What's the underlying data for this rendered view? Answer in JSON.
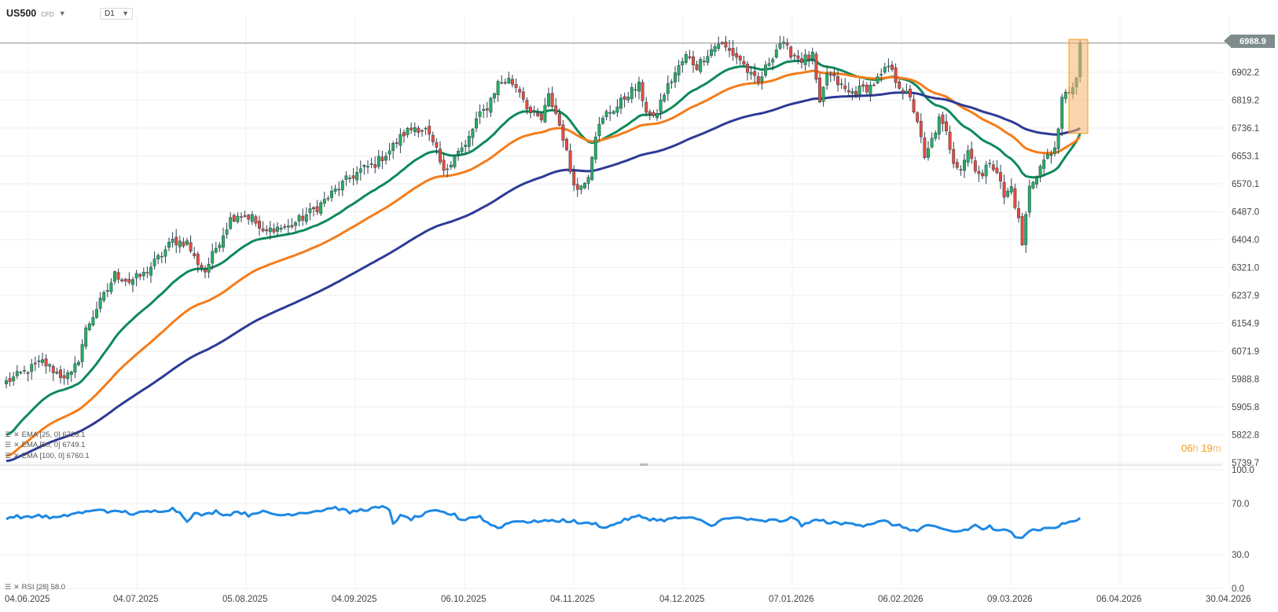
{
  "header": {
    "symbol": "US500",
    "symbol_type": "CFD",
    "timeframe": "D1"
  },
  "last_price_label": "6988.9",
  "countdown": {
    "hours": "06",
    "h_unit": "h",
    "minutes": "19",
    "m_unit": "m"
  },
  "indicators": [
    {
      "label": "EMA [25, 0] 6728.1",
      "color": "#0e8a5a"
    },
    {
      "label": "EMA [50, 0] 6749.1",
      "color": "#f47c1a"
    },
    {
      "label": "EMA [100, 0] 6760.1",
      "color": "#2e3a96"
    }
  ],
  "rsi_label": "RSI [28] 58.0",
  "colors": {
    "up": "#27ae60",
    "down": "#e74c3c",
    "rsi": "#1e88e5",
    "highlight": "#f7b36b"
  },
  "chart_data": [
    {
      "type": "candlestick",
      "x_labels": [
        "04.06.2025",
        "04.07.2025",
        "05.08.2025",
        "04.09.2025",
        "06.10.2025",
        "04.11.2025",
        "04.12.2025",
        "07.01.2026",
        "06.02.2026",
        "09.03.2026",
        "06.04.2026",
        "30.04.2026"
      ],
      "y_ticks": [
        5739.7,
        5822.8,
        5905.8,
        5988.8,
        6071.9,
        6154.9,
        6237.9,
        6321.0,
        6404.0,
        6487.0,
        6570.1,
        6653.1,
        6736.1,
        6819.2,
        6902.2
      ],
      "ylim": [
        5739.7,
        7060
      ],
      "current_price": 6988.9,
      "close_anchors": [
        [
          0,
          5980
        ],
        [
          5,
          6010
        ],
        [
          10,
          6040
        ],
        [
          15,
          6000
        ],
        [
          18,
          6000
        ],
        [
          20,
          6050
        ],
        [
          22,
          6135
        ],
        [
          25,
          6200
        ],
        [
          28,
          6255
        ],
        [
          30,
          6300
        ],
        [
          34,
          6280
        ],
        [
          38,
          6300
        ],
        [
          43,
          6360
        ],
        [
          46,
          6400
        ],
        [
          50,
          6395
        ],
        [
          52,
          6350
        ],
        [
          55,
          6310
        ],
        [
          58,
          6380
        ],
        [
          62,
          6465
        ],
        [
          64,
          6480
        ],
        [
          68,
          6470
        ],
        [
          71,
          6420
        ],
        [
          74,
          6440
        ],
        [
          78,
          6440
        ],
        [
          82,
          6470
        ],
        [
          86,
          6500
        ],
        [
          90,
          6540
        ],
        [
          94,
          6580
        ],
        [
          98,
          6610
        ],
        [
          102,
          6630
        ],
        [
          106,
          6670
        ],
        [
          110,
          6720
        ],
        [
          113,
          6740
        ],
        [
          116,
          6730
        ],
        [
          119,
          6665
        ],
        [
          121,
          6600
        ],
        [
          124,
          6660
        ],
        [
          127,
          6680
        ],
        [
          130,
          6760
        ],
        [
          133,
          6800
        ],
        [
          136,
          6870
        ],
        [
          139,
          6880
        ],
        [
          142,
          6850
        ],
        [
          145,
          6780
        ],
        [
          148,
          6760
        ],
        [
          150,
          6830
        ],
        [
          152,
          6780
        ],
        [
          154,
          6710
        ],
        [
          156,
          6610
        ],
        [
          158,
          6550
        ],
        [
          161,
          6600
        ],
        [
          163,
          6720
        ],
        [
          166,
          6780
        ],
        [
          169,
          6800
        ],
        [
          172,
          6840
        ],
        [
          175,
          6860
        ],
        [
          177,
          6790
        ],
        [
          179,
          6760
        ],
        [
          182,
          6840
        ],
        [
          185,
          6900
        ],
        [
          188,
          6950
        ],
        [
          191,
          6920
        ],
        [
          194,
          6960
        ],
        [
          197,
          6990
        ],
        [
          200,
          6965
        ],
        [
          203,
          6940
        ],
        [
          206,
          6890
        ],
        [
          208,
          6870
        ],
        [
          211,
          6935
        ],
        [
          214,
          6990
        ],
        [
          217,
          6960
        ],
        [
          220,
          6940
        ],
        [
          223,
          6950
        ],
        [
          225,
          6800
        ],
        [
          227,
          6900
        ],
        [
          230,
          6870
        ],
        [
          233,
          6840
        ],
        [
          236,
          6850
        ],
        [
          239,
          6860
        ],
        [
          242,
          6890
        ],
        [
          244,
          6920
        ],
        [
          246,
          6880
        ],
        [
          248,
          6850
        ],
        [
          250,
          6820
        ],
        [
          252,
          6760
        ],
        [
          254,
          6640
        ],
        [
          256,
          6700
        ],
        [
          258,
          6760
        ],
        [
          260,
          6720
        ],
        [
          262,
          6640
        ],
        [
          264,
          6620
        ],
        [
          266,
          6670
        ],
        [
          268,
          6620
        ],
        [
          270,
          6590
        ],
        [
          272,
          6640
        ],
        [
          274,
          6610
        ],
        [
          276,
          6530
        ],
        [
          278,
          6560
        ],
        [
          280,
          6460
        ],
        [
          281,
          6390
        ],
        [
          283,
          6560
        ],
        [
          285,
          6600
        ],
        [
          287,
          6640
        ],
        [
          289,
          6660
        ],
        [
          291,
          6720
        ],
        [
          292,
          6820
        ],
        [
          294,
          6850
        ],
        [
          296,
          6880
        ],
        [
          297,
          6980
        ]
      ]
    },
    {
      "type": "line",
      "name": "RSI [28]",
      "y_ticks": [
        0.0,
        30.0,
        70.0,
        100.0
      ],
      "ylim": [
        0,
        100
      ],
      "anchors": [
        [
          0,
          59
        ],
        [
          3,
          60
        ],
        [
          6,
          59
        ],
        [
          9,
          61
        ],
        [
          12,
          59
        ],
        [
          15,
          59
        ],
        [
          18,
          62
        ],
        [
          21,
          63
        ],
        [
          24,
          64
        ],
        [
          26,
          66
        ],
        [
          29,
          63
        ],
        [
          32,
          64
        ],
        [
          35,
          62
        ],
        [
          38,
          63
        ],
        [
          41,
          64
        ],
        [
          44,
          65
        ],
        [
          46,
          66
        ],
        [
          48,
          63
        ],
        [
          50,
          57
        ],
        [
          52,
          62
        ],
        [
          55,
          61
        ],
        [
          58,
          64
        ],
        [
          61,
          61
        ],
        [
          64,
          64
        ],
        [
          67,
          61
        ],
        [
          70,
          64
        ],
        [
          73,
          62
        ],
        [
          76,
          61
        ],
        [
          79,
          62
        ],
        [
          82,
          63
        ],
        [
          85,
          64
        ],
        [
          88,
          65
        ],
        [
          90,
          67
        ],
        [
          92,
          66
        ],
        [
          95,
          63
        ],
        [
          98,
          65
        ],
        [
          101,
          66
        ],
        [
          104,
          67
        ],
        [
          106,
          65
        ],
        [
          107,
          55
        ],
        [
          109,
          60
        ],
        [
          112,
          58
        ],
        [
          115,
          61
        ],
        [
          118,
          64
        ],
        [
          121,
          63
        ],
        [
          124,
          61
        ],
        [
          126,
          57
        ],
        [
          128,
          59
        ],
        [
          131,
          60
        ],
        [
          133,
          55
        ],
        [
          136,
          51
        ],
        [
          139,
          55
        ],
        [
          142,
          57
        ],
        [
          145,
          55
        ],
        [
          148,
          57
        ],
        [
          151,
          56
        ],
        [
          154,
          57
        ],
        [
          157,
          56
        ],
        [
          160,
          54
        ],
        [
          162,
          55
        ],
        [
          164,
          53
        ],
        [
          166,
          51
        ],
        [
          169,
          55
        ],
        [
          172,
          58
        ],
        [
          175,
          60
        ],
        [
          178,
          58
        ],
        [
          181,
          57
        ],
        [
          184,
          58
        ],
        [
          187,
          59
        ],
        [
          190,
          58
        ],
        [
          193,
          56
        ],
        [
          195,
          52
        ],
        [
          197,
          57
        ],
        [
          200,
          58
        ],
        [
          203,
          59
        ],
        [
          206,
          57
        ],
        [
          209,
          56
        ],
        [
          212,
          57
        ],
        [
          214,
          56
        ],
        [
          216,
          58
        ],
        [
          218,
          59
        ],
        [
          220,
          52
        ],
        [
          222,
          56
        ],
        [
          225,
          57
        ],
        [
          228,
          55
        ],
        [
          231,
          54
        ],
        [
          234,
          55
        ],
        [
          237,
          53
        ],
        [
          240,
          55
        ],
        [
          243,
          56
        ],
        [
          246,
          53
        ],
        [
          249,
          51
        ],
        [
          252,
          48
        ],
        [
          254,
          53
        ],
        [
          257,
          51
        ],
        [
          260,
          49
        ],
        [
          263,
          48
        ],
        [
          266,
          50
        ],
        [
          268,
          53
        ],
        [
          270,
          50
        ],
        [
          272,
          52
        ],
        [
          274,
          48
        ],
        [
          276,
          49
        ],
        [
          278,
          48
        ],
        [
          279,
          45
        ],
        [
          281,
          44
        ],
        [
          283,
          49
        ],
        [
          286,
          50
        ],
        [
          289,
          51
        ],
        [
          291,
          52
        ],
        [
          293,
          55
        ],
        [
          295,
          56
        ],
        [
          297,
          58
        ]
      ]
    }
  ]
}
